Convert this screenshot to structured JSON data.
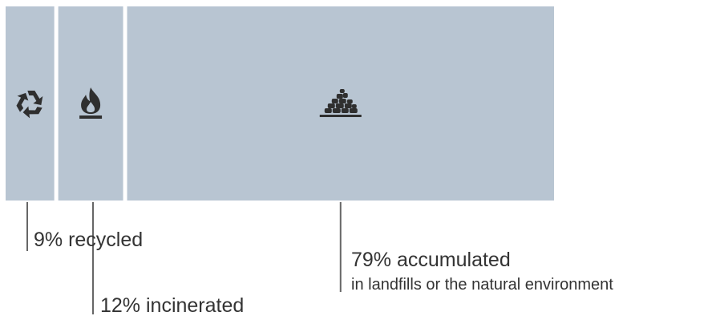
{
  "colors": {
    "segment_fill": "#b8c5d2",
    "leader_line": "#666666",
    "icon": "#2f2f2f",
    "text": "#333333"
  },
  "chart_data": {
    "type": "bar",
    "orientation": "horizontal-stacked",
    "unit": "%",
    "segments": [
      {
        "key": "recycled",
        "value": 9,
        "label": "9% recycled",
        "sublabel": "",
        "icon": "recycle-icon"
      },
      {
        "key": "incinerated",
        "value": 12,
        "label": "12% incinerated",
        "sublabel": "",
        "icon": "flame-icon"
      },
      {
        "key": "accumulated",
        "value": 79,
        "label": "79% accumulated",
        "sublabel": "in landfills or the natural environment",
        "icon": "landfill-icon"
      }
    ],
    "total": 100,
    "grid": false,
    "legend": "none"
  }
}
